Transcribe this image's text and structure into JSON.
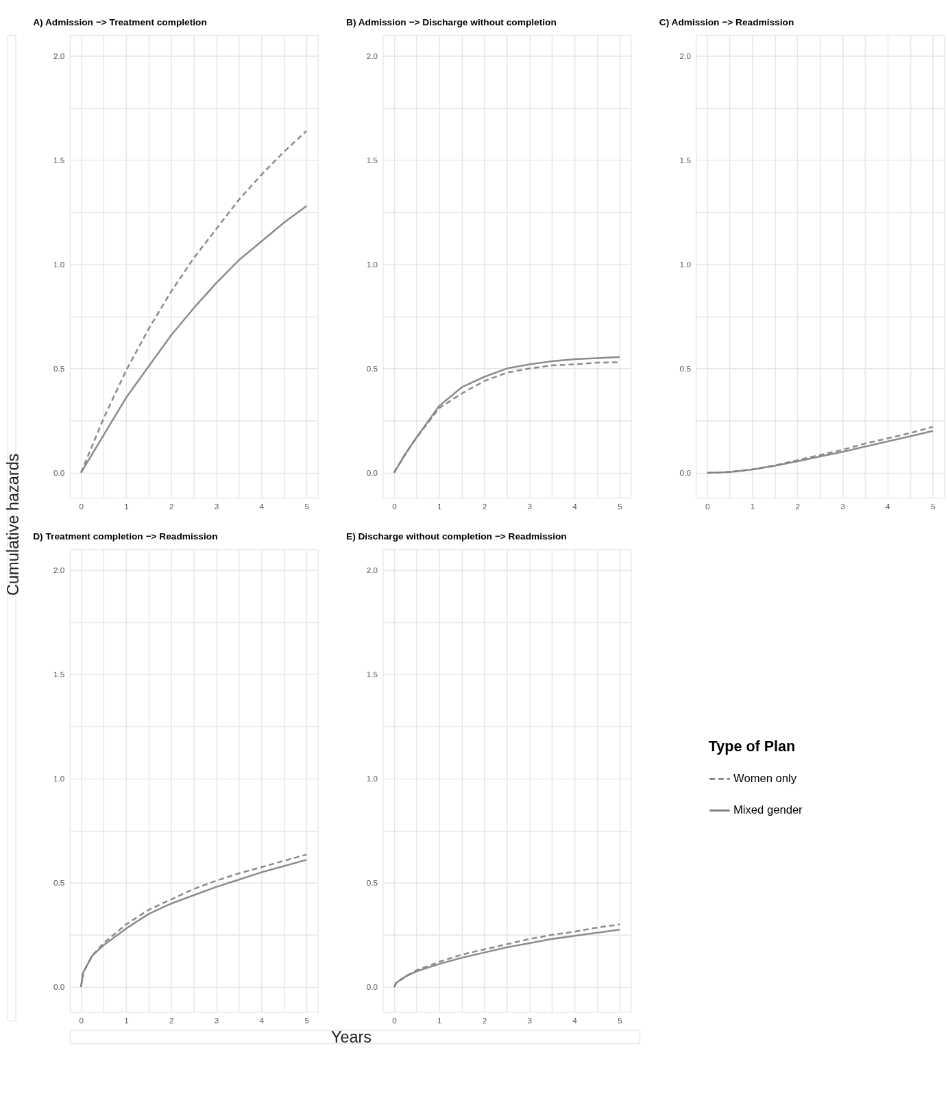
{
  "chart_data": [
    {
      "type": "line",
      "title": "A) Admission −> Treatment completion",
      "ylabel": "Cumulative hazards",
      "xlabel": "Years",
      "legend_title": "Type of Plan",
      "legend": "right",
      "grid": true,
      "x": [
        0,
        0.25,
        0.5,
        1,
        1.5,
        2,
        2.5,
        3,
        3.5,
        4,
        4.5,
        5
      ],
      "series": [
        {
          "name": "Women only",
          "color": "#7f7f7f",
          "line_style": "dashed",
          "values": [
            0,
            0.13,
            0.26,
            0.49,
            0.69,
            0.87,
            1.03,
            1.17,
            1.31,
            1.43,
            1.54,
            1.64
          ]
        },
        {
          "name": "Mixed gender",
          "color": "#7f7f7f",
          "line_style": "solid",
          "values": [
            0,
            0.09,
            0.18,
            0.36,
            0.51,
            0.66,
            0.79,
            0.91,
            1.02,
            1.11,
            1.2,
            1.28
          ]
        }
      ],
      "xlim": [
        -0.25,
        5.25
      ],
      "ylim": [
        -0.12,
        2.1
      ],
      "xticks": [
        0,
        {
          "value": 0.5,
          "label": null
        },
        1,
        {
          "value": 1.5,
          "label": null
        },
        2,
        {
          "value": 2.5,
          "label": null
        },
        3,
        {
          "value": 3.5,
          "label": null
        },
        4,
        {
          "value": 4.5,
          "label": null
        },
        5
      ],
      "yticks": [
        {
          "value": 0,
          "label": "0.0"
        },
        {
          "value": 0.25,
          "label": null
        },
        {
          "value": 0.5,
          "label": "0.5"
        },
        {
          "value": 0.75,
          "label": null
        },
        {
          "value": 1,
          "label": "1.0"
        },
        {
          "value": 1.25,
          "label": null
        },
        {
          "value": 1.5,
          "label": "1.5"
        },
        {
          "value": 1.75,
          "label": null
        },
        {
          "value": 2,
          "label": "2.0"
        }
      ]
    },
    {
      "type": "line",
      "title": "B) Admission −> Discharge without completion",
      "grid": true,
      "x": [
        0,
        0.25,
        0.5,
        1,
        1.5,
        2,
        2.5,
        3,
        3.5,
        4,
        4.5,
        5
      ],
      "series": [
        {
          "name": "Women only",
          "color": "#7f7f7f",
          "line_style": "dashed",
          "values": [
            0,
            0.09,
            0.17,
            0.31,
            0.38,
            0.44,
            0.48,
            0.5,
            0.515,
            0.52,
            0.528,
            0.53
          ]
        },
        {
          "name": "Mixed gender",
          "color": "#7f7f7f",
          "line_style": "solid",
          "values": [
            0,
            0.09,
            0.17,
            0.32,
            0.41,
            0.46,
            0.5,
            0.52,
            0.535,
            0.545,
            0.55,
            0.555
          ]
        }
      ],
      "xlim": [
        -0.25,
        5.25
      ],
      "ylim": [
        -0.12,
        2.1
      ],
      "xticks": [
        0,
        {
          "value": 0.5,
          "label": null
        },
        1,
        {
          "value": 1.5,
          "label": null
        },
        2,
        {
          "value": 2.5,
          "label": null
        },
        3,
        {
          "value": 3.5,
          "label": null
        },
        4,
        {
          "value": 4.5,
          "label": null
        },
        5
      ],
      "yticks": [
        {
          "value": 0,
          "label": "0.0"
        },
        {
          "value": 0.25,
          "label": null
        },
        {
          "value": 0.5,
          "label": "0.5"
        },
        {
          "value": 0.75,
          "label": null
        },
        {
          "value": 1,
          "label": "1.0"
        },
        {
          "value": 1.25,
          "label": null
        },
        {
          "value": 1.5,
          "label": "1.5"
        },
        {
          "value": 1.75,
          "label": null
        },
        {
          "value": 2,
          "label": "2.0"
        }
      ]
    },
    {
      "type": "line",
      "title": "C) Admission −> Readmission",
      "grid": true,
      "x": [
        0,
        0.25,
        0.5,
        1,
        1.5,
        2,
        2.5,
        3,
        3.5,
        4,
        4.5,
        5
      ],
      "series": [
        {
          "name": "Women only",
          "color": "#7f7f7f",
          "line_style": "dashed",
          "values": [
            0,
            0.001,
            0.004,
            0.016,
            0.035,
            0.06,
            0.085,
            0.11,
            0.14,
            0.165,
            0.19,
            0.22
          ]
        },
        {
          "name": "Mixed gender",
          "color": "#7f7f7f",
          "line_style": "solid",
          "values": [
            0,
            0.001,
            0.003,
            0.015,
            0.033,
            0.055,
            0.078,
            0.1,
            0.125,
            0.15,
            0.175,
            0.2
          ]
        }
      ],
      "xlim": [
        -0.25,
        5.25
      ],
      "ylim": [
        -0.12,
        2.1
      ],
      "xticks": [
        0,
        {
          "value": 0.5,
          "label": null
        },
        1,
        {
          "value": 1.5,
          "label": null
        },
        2,
        {
          "value": 2.5,
          "label": null
        },
        3,
        {
          "value": 3.5,
          "label": null
        },
        4,
        {
          "value": 4.5,
          "label": null
        },
        5
      ],
      "yticks": [
        {
          "value": 0,
          "label": "0.0"
        },
        {
          "value": 0.25,
          "label": null
        },
        {
          "value": 0.5,
          "label": "0.5"
        },
        {
          "value": 0.75,
          "label": null
        },
        {
          "value": 1,
          "label": "1.0"
        },
        {
          "value": 1.25,
          "label": null
        },
        {
          "value": 1.5,
          "label": "1.5"
        },
        {
          "value": 1.75,
          "label": null
        },
        {
          "value": 2,
          "label": "2.0"
        }
      ]
    },
    {
      "type": "line",
      "title": "D) Treatment completion −> Readmission",
      "grid": true,
      "x": [
        0,
        0.05,
        0.25,
        0.5,
        1,
        1.5,
        2,
        2.5,
        3,
        3.5,
        4,
        4.5,
        5
      ],
      "series": [
        {
          "name": "Women only",
          "color": "#7f7f7f",
          "line_style": "dashed",
          "values": [
            0,
            0.07,
            0.15,
            0.21,
            0.3,
            0.37,
            0.42,
            0.47,
            0.51,
            0.545,
            0.575,
            0.605,
            0.635
          ]
        },
        {
          "name": "Mixed gender",
          "color": "#7f7f7f",
          "line_style": "solid",
          "values": [
            0,
            0.07,
            0.15,
            0.2,
            0.28,
            0.35,
            0.4,
            0.44,
            0.48,
            0.515,
            0.55,
            0.58,
            0.61
          ]
        }
      ],
      "xlim": [
        -0.25,
        5.25
      ],
      "ylim": [
        -0.12,
        2.1
      ],
      "xticks": [
        0,
        {
          "value": 0.5,
          "label": null
        },
        1,
        {
          "value": 1.5,
          "label": null
        },
        2,
        {
          "value": 2.5,
          "label": null
        },
        3,
        {
          "value": 3.5,
          "label": null
        },
        4,
        {
          "value": 4.5,
          "label": null
        },
        5
      ],
      "yticks": [
        {
          "value": 0,
          "label": "0.0"
        },
        {
          "value": 0.25,
          "label": null
        },
        {
          "value": 0.5,
          "label": "0.5"
        },
        {
          "value": 0.75,
          "label": null
        },
        {
          "value": 1,
          "label": "1.0"
        },
        {
          "value": 1.25,
          "label": null
        },
        {
          "value": 1.5,
          "label": "1.5"
        },
        {
          "value": 1.75,
          "label": null
        },
        {
          "value": 2,
          "label": "2.0"
        }
      ]
    },
    {
      "type": "line",
      "title": "E) Discharge without completion −> Readmission",
      "grid": true,
      "x": [
        0,
        0.05,
        0.25,
        0.5,
        1,
        1.5,
        2,
        2.5,
        3,
        3.5,
        4,
        4.5,
        5
      ],
      "series": [
        {
          "name": "Women only",
          "color": "#7f7f7f",
          "line_style": "dashed",
          "values": [
            0,
            0.02,
            0.05,
            0.08,
            0.12,
            0.155,
            0.18,
            0.205,
            0.23,
            0.25,
            0.265,
            0.285,
            0.3
          ]
        },
        {
          "name": "Mixed gender",
          "color": "#7f7f7f",
          "line_style": "solid",
          "values": [
            0,
            0.02,
            0.05,
            0.075,
            0.11,
            0.14,
            0.165,
            0.19,
            0.21,
            0.23,
            0.245,
            0.26,
            0.275
          ]
        }
      ],
      "xlim": [
        -0.25,
        5.25
      ],
      "ylim": [
        -0.12,
        2.1
      ],
      "xticks": [
        0,
        {
          "value": 0.5,
          "label": null
        },
        1,
        {
          "value": 1.5,
          "label": null
        },
        2,
        {
          "value": 2.5,
          "label": null
        },
        3,
        {
          "value": 3.5,
          "label": null
        },
        4,
        {
          "value": 4.5,
          "label": null
        },
        5
      ],
      "yticks": [
        {
          "value": 0,
          "label": "0.0"
        },
        {
          "value": 0.25,
          "label": null
        },
        {
          "value": 0.5,
          "label": "0.5"
        },
        {
          "value": 0.75,
          "label": null
        },
        {
          "value": 1,
          "label": "1.0"
        },
        {
          "value": 1.25,
          "label": null
        },
        {
          "value": 1.5,
          "label": "1.5"
        },
        {
          "value": 1.75,
          "label": null
        },
        {
          "value": 2,
          "label": "2.0"
        }
      ]
    }
  ]
}
